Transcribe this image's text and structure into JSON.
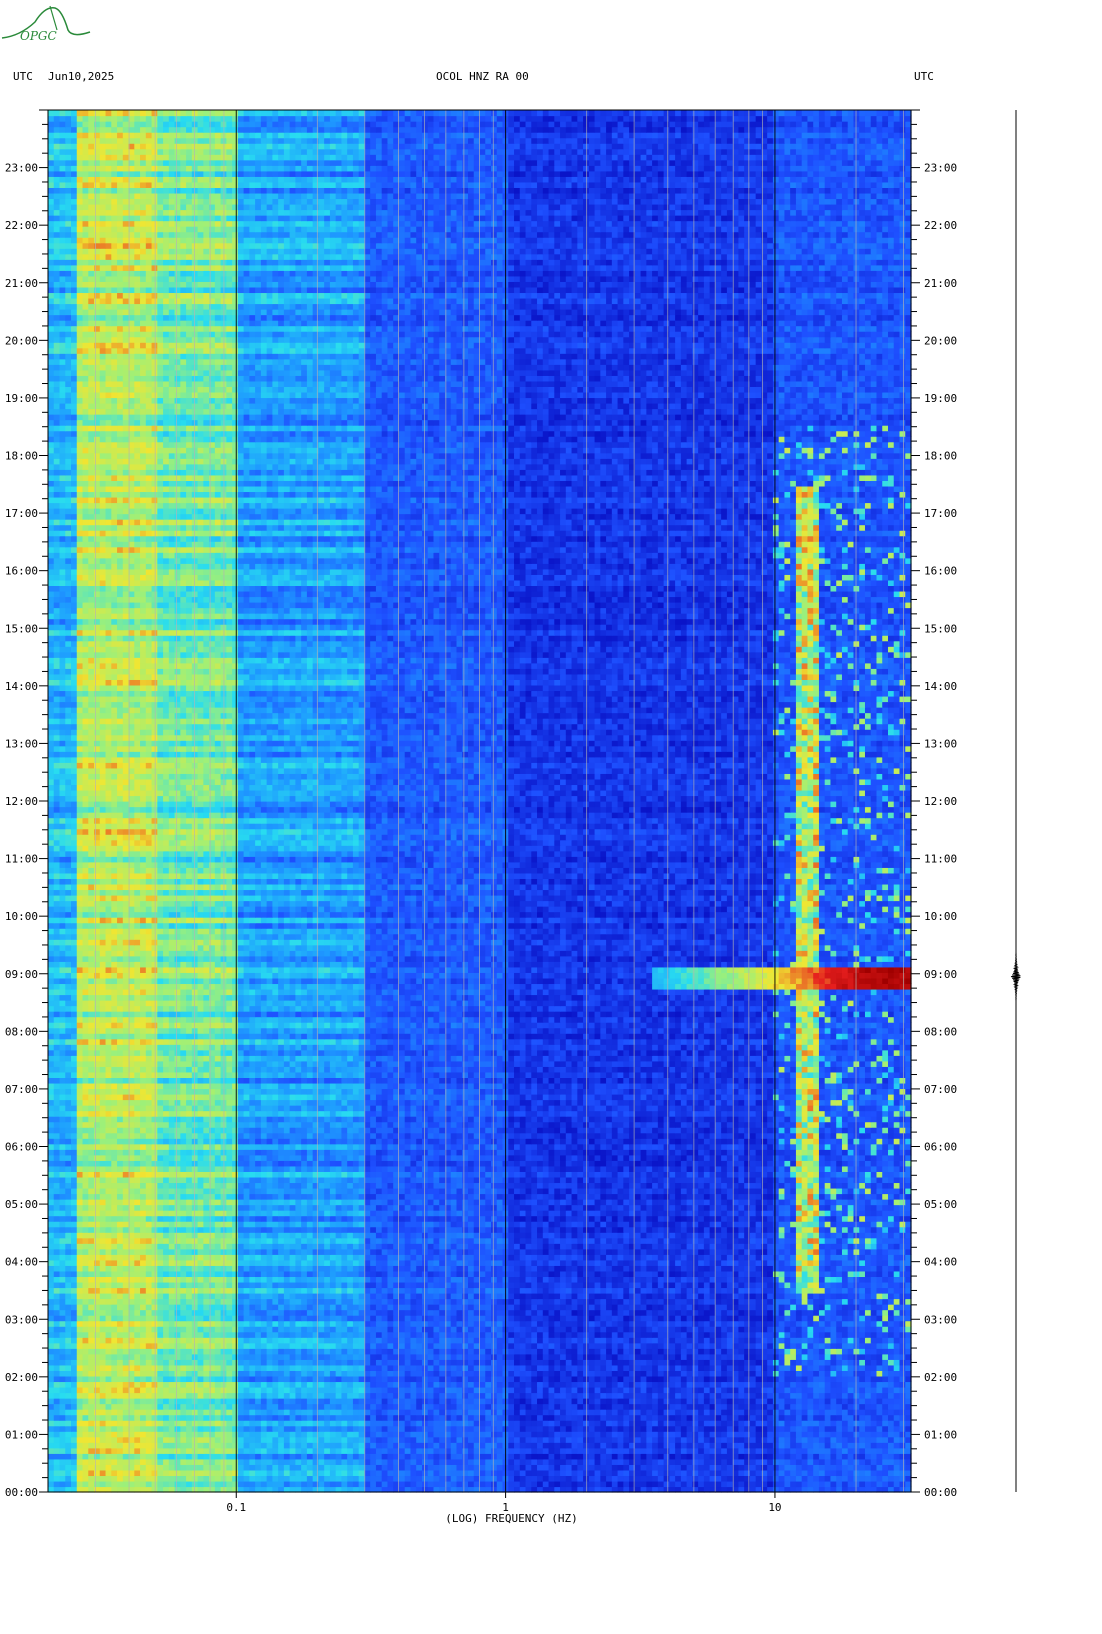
{
  "header": {
    "left_tz": "UTC",
    "date": "Jun10,2025",
    "station": "OCOL HNZ RA 00",
    "right_tz": "UTC"
  },
  "logo": {
    "text": "OPGC",
    "color": "#2a8a3a"
  },
  "chart_data": {
    "type": "heatmap",
    "title": "OCOL HNZ RA 00",
    "xlabel": "(LOG) FREQUENCY (HZ)",
    "ylabel": "",
    "x_scale": "log",
    "xlim": [
      0.02,
      32
    ],
    "x_tick_labels": [
      "0.1",
      "1",
      "10"
    ],
    "x_tick_values": [
      0.1,
      1,
      10
    ],
    "ylim_hours": [
      0,
      24
    ],
    "y_tick_labels": [
      "00:00",
      "01:00",
      "02:00",
      "03:00",
      "04:00",
      "05:00",
      "06:00",
      "07:00",
      "08:00",
      "09:00",
      "10:00",
      "11:00",
      "12:00",
      "13:00",
      "14:00",
      "15:00",
      "16:00",
      "17:00",
      "18:00",
      "19:00",
      "20:00",
      "21:00",
      "22:00",
      "23:00"
    ],
    "colormap": [
      "#0a14c8",
      "#1e50ff",
      "#1e9aff",
      "#28dcf0",
      "#9cf07a",
      "#f0e632",
      "#e61e1e",
      "#a00000"
    ],
    "background_level_by_band": [
      {
        "f_min": 0.02,
        "f_max": 0.025,
        "level": 0.35
      },
      {
        "f_min": 0.025,
        "f_max": 0.05,
        "level": 0.62
      },
      {
        "f_min": 0.05,
        "f_max": 0.1,
        "level": 0.52
      },
      {
        "f_min": 0.1,
        "f_max": 0.3,
        "level": 0.3
      },
      {
        "f_min": 0.3,
        "f_max": 1,
        "level": 0.16
      },
      {
        "f_min": 1,
        "f_max": 10,
        "level": 0.08
      },
      {
        "f_min": 10,
        "f_max": 32,
        "level": 0.15
      }
    ],
    "events": [
      {
        "name": "strong event",
        "time_hour": 8.95,
        "f_min": 3.5,
        "f_max": 32,
        "level": 0.97
      },
      {
        "name": "cultural noise band",
        "t_start": 3.5,
        "t_end": 17.5,
        "f_min": 12,
        "f_max": 14.5,
        "level": 0.8
      }
    ]
  }
}
